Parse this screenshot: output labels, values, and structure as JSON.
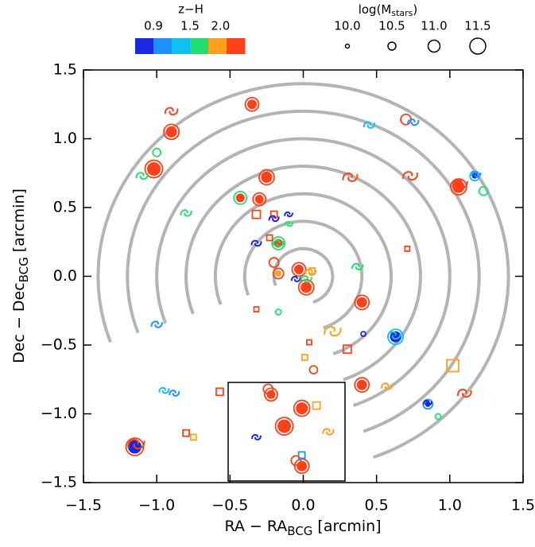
{
  "chart_data": {
    "type": "scatter",
    "xlabel": {
      "main": "RA − RA",
      "sub": "BCG",
      "unit": "[arcmin]"
    },
    "ylabel": {
      "main": "Dec − Dec",
      "sub": "BCG",
      "unit": "[arcmin]"
    },
    "xlim": [
      -1.5,
      1.5
    ],
    "xticks": [
      {
        "value": -1.5,
        "label": "−1.5"
      },
      {
        "value": -1,
        "label": "−1.0"
      },
      {
        "value": -0.5,
        "label": "−0.5"
      },
      {
        "value": 0,
        "label": "0.0"
      },
      {
        "value": 0.5,
        "label": "0.5"
      },
      {
        "value": 1,
        "label": "1.0"
      },
      {
        "value": 1.5,
        "label": "1.5"
      }
    ],
    "ylim": [
      -1.5,
      1.5
    ],
    "yticks": [
      {
        "value": -1.5,
        "label": "−1.5"
      },
      {
        "value": -1,
        "label": "−1.0"
      },
      {
        "value": -0.5,
        "label": "−0.5"
      },
      {
        "value": 0,
        "label": "0.0"
      },
      {
        "value": 0.5,
        "label": "0.5"
      },
      {
        "value": 1,
        "label": "1.0"
      },
      {
        "value": 1.5,
        "label": "1.5"
      }
    ],
    "rings": [
      0.2,
      0.4,
      0.6,
      0.8,
      1.0,
      1.2,
      1.4
    ],
    "ring_color": "#b4b4b4",
    "colorbar": {
      "title": "z−H",
      "clim": [
        0.6,
        2.4
      ],
      "colors": [
        "#1a28e0",
        "#1e90ff",
        "#10c0f0",
        "#20e070",
        "#ffa020",
        "#ff4018"
      ],
      "ticks": [
        0.9,
        1.5,
        {
          "value": 2.0,
          "label": "2.0"
        }
      ]
    },
    "size_legend": {
      "title": "log(M",
      "sub": "stars",
      "close": ")",
      "ticks": [
        {
          "value": 10,
          "label": "10.0"
        },
        {
          "value": 10.5,
          "label": "10.5"
        },
        {
          "value": 11,
          "label": "11.0"
        },
        {
          "value": 11.5,
          "label": "11.5"
        }
      ]
    },
    "series": [
      {
        "marker": "filled",
        "x": [
          -0.35,
          -0.9,
          -1.02,
          -0.25,
          -0.43,
          -0.3,
          -0.17,
          0.4,
          0.4,
          1.06,
          -1.15,
          0.63,
          0.02,
          -0.03,
          1.17,
          0.85,
          -0.17,
          -0.22,
          -0.01,
          -0.13,
          -0.01
        ],
        "y": [
          1.25,
          1.05,
          0.78,
          0.72,
          0.57,
          0.56,
          0.24,
          -0.19,
          -0.79,
          0.65,
          -1.24,
          -0.44,
          -0.08,
          0.05,
          0.73,
          -0.93,
          0.02,
          -0.86,
          -0.96,
          -1.09,
          -1.38
        ],
        "size": [
          10.7,
          10.9,
          11.2,
          10.9,
          10.6,
          10.6,
          10.6,
          10.8,
          10.8,
          11.0,
          11.2,
          10.9,
          10.9,
          10.7,
          10.2,
          10.2,
          10.3,
          10.6,
          11.0,
          11.2,
          10.8
        ],
        "colors": [
          "#ff4018",
          "#ff4018",
          "#ff4018",
          "#ff4018",
          "#ff4018",
          "#ff4018",
          "#ff4018",
          "#ff4018",
          "#ff4018",
          "#ff4018",
          "#1a28e0",
          "#1a28e0",
          "#ff4018",
          "#ff4018",
          "#1a28e0",
          "#1a28e0",
          "#ffa020",
          "#ff4018",
          "#ff4018",
          "#ff4018",
          "#ff4018"
        ],
        "edgecolors": [
          "#ff4018",
          "#ff4018",
          "#ff4018",
          "#ff4018",
          "#20e070",
          "#ff4018",
          "#20e070",
          "#ff4018",
          "#ff4018",
          "#ff4018",
          "#ff4018",
          "#10c0f0",
          "#ff4018",
          "#ff4018",
          "#10c0f0",
          "#1e90ff",
          "#ff4018",
          "#ff4018",
          "#ff4018",
          "#ff4018",
          "#ff4018"
        ]
      },
      {
        "marker": "circle",
        "x": [
          0.7,
          -1.0,
          1.23,
          -0.2,
          -0.17,
          0.07,
          0.92,
          0.41,
          -0.24,
          -0.05
        ],
        "y": [
          1.14,
          0.9,
          0.62,
          0.1,
          -0.26,
          -0.68,
          -1.02,
          -0.42,
          -0.82,
          -1.34
        ],
        "size": [
          10.8,
          10.5,
          10.6,
          10.7,
          10.2,
          10.5,
          10.2,
          10.1,
          10.7,
          10.7
        ],
        "colors": [
          "#ff4018",
          "#20e070",
          "#20e070",
          "#ff4018",
          "#20e070",
          "#ff4018",
          "#20e070",
          "#1a28e0",
          "#ff4018",
          "#ff4018"
        ]
      },
      {
        "marker": "square",
        "x": [
          -0.32,
          -0.2,
          -0.23,
          0.71,
          -0.32,
          0.04,
          0.01,
          0.3,
          1.02,
          -0.57,
          -0.8,
          -0.75,
          0.09,
          -0.01,
          0.06
        ],
        "y": [
          0.45,
          0.45,
          0.28,
          0.2,
          -0.24,
          -0.48,
          -0.59,
          -0.53,
          -0.65,
          -0.84,
          -1.14,
          -1.17,
          -0.94,
          -1.3,
          0.04
        ],
        "size": [
          10.5,
          10.3,
          10.2,
          10.1,
          10.1,
          10.1,
          10.2,
          10.5,
          11.0,
          10.4,
          10.3,
          10.2,
          10.4,
          10.3,
          10.2
        ],
        "colors": [
          "#ff4018",
          "#ff4018",
          "#ff4018",
          "#ff4018",
          "#ff4018",
          "#ff4018",
          "#ffa020",
          "#ff4018",
          "#ffa020",
          "#ff4018",
          "#ff4018",
          "#ffa020",
          "#ffa020",
          "#1e90ff",
          "#ffa020"
        ]
      },
      {
        "marker": "spiral",
        "x": [
          -0.9,
          0.45,
          0.75,
          -1.1,
          -0.8,
          0.32,
          0.73,
          1.07,
          -0.32,
          -0.2,
          -0.1,
          -0.1,
          -0.17,
          0.37,
          -0.05,
          0.02,
          0.05,
          -1.0,
          0.2,
          0.62,
          -0.95,
          -0.88,
          0.57,
          1.1,
          -1.14,
          1.18,
          0.85,
          -0.32,
          0.17
        ],
        "y": [
          1.2,
          1.1,
          1.12,
          0.73,
          0.46,
          0.72,
          0.73,
          0.67,
          0.24,
          0.42,
          0.45,
          0.38,
          0.24,
          0.07,
          -0.02,
          -0.02,
          0.03,
          -0.35,
          -0.4,
          -0.43,
          -0.83,
          -0.85,
          -0.8,
          -0.85,
          -1.22,
          0.74,
          -0.92,
          -1.17,
          -1.13
        ],
        "size": [
          10.8,
          10.6,
          10.6,
          10.7,
          10.6,
          11.0,
          11.0,
          11.0,
          10.5,
          10.5,
          10.3,
          10.3,
          10.6,
          10.6,
          10.4,
          10.6,
          10.6,
          10.6,
          11.2,
          10.8,
          10.5,
          10.5,
          10.6,
          10.9,
          11.2,
          10.4,
          10.3,
          10.4,
          10.6
        ],
        "colors": [
          "#ff4018",
          "#10c0f0",
          "#1e90ff",
          "#20e070",
          "#20e070",
          "#ff4018",
          "#ff4018",
          "#ff4018",
          "#1a28e0",
          "#1a28e0",
          "#1a28e0",
          "#20e070",
          "#20e070",
          "#20e070",
          "#1a28e0",
          "#20e070",
          "#ffa020",
          "#1e90ff",
          "#ffa020",
          "#10c0f0",
          "#10c0f0",
          "#1e90ff",
          "#ffa020",
          "#ff4018",
          "#ff4018",
          "#1e90ff",
          "#1a28e0",
          "#1a28e0",
          "#ffa020"
        ]
      }
    ]
  }
}
